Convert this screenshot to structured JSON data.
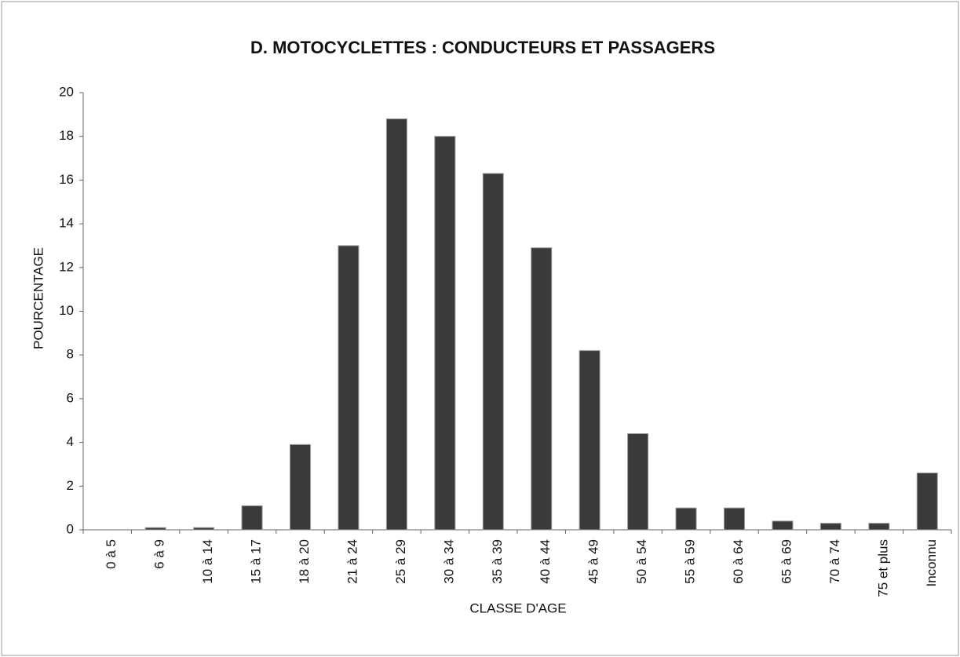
{
  "chart_data": {
    "type": "bar",
    "title": "D. MOTOCYCLETTES : CONDUCTEURS ET PASSAGERS",
    "x_label": "CLASSE D'AGE",
    "y_label": "POURCENTAGE",
    "categories": [
      "0 à 5",
      "6 à 9",
      "10 à 14",
      "15 à 17",
      "18 à 20",
      "21 à 24",
      "25 à 29",
      "30 à 34",
      "35 à 39",
      "40 à 44",
      "45 à 49",
      "50 à 54",
      "55 à 59",
      "60 à 64",
      "65 à 69",
      "70 à 74",
      "75 et plus",
      "Inconnu"
    ],
    "values": [
      0,
      0.1,
      0.1,
      1.1,
      3.9,
      13,
      18.8,
      18,
      16.3,
      12.9,
      8.2,
      4.4,
      1.0,
      1.0,
      0.4,
      0.3,
      0.3,
      2.6
    ],
    "color": "#3a3a3a",
    "ylim": [
      0,
      20
    ],
    "yticks": [
      0,
      2,
      4,
      6,
      8,
      10,
      12,
      14,
      16,
      18,
      20
    ],
    "grid": false
  }
}
